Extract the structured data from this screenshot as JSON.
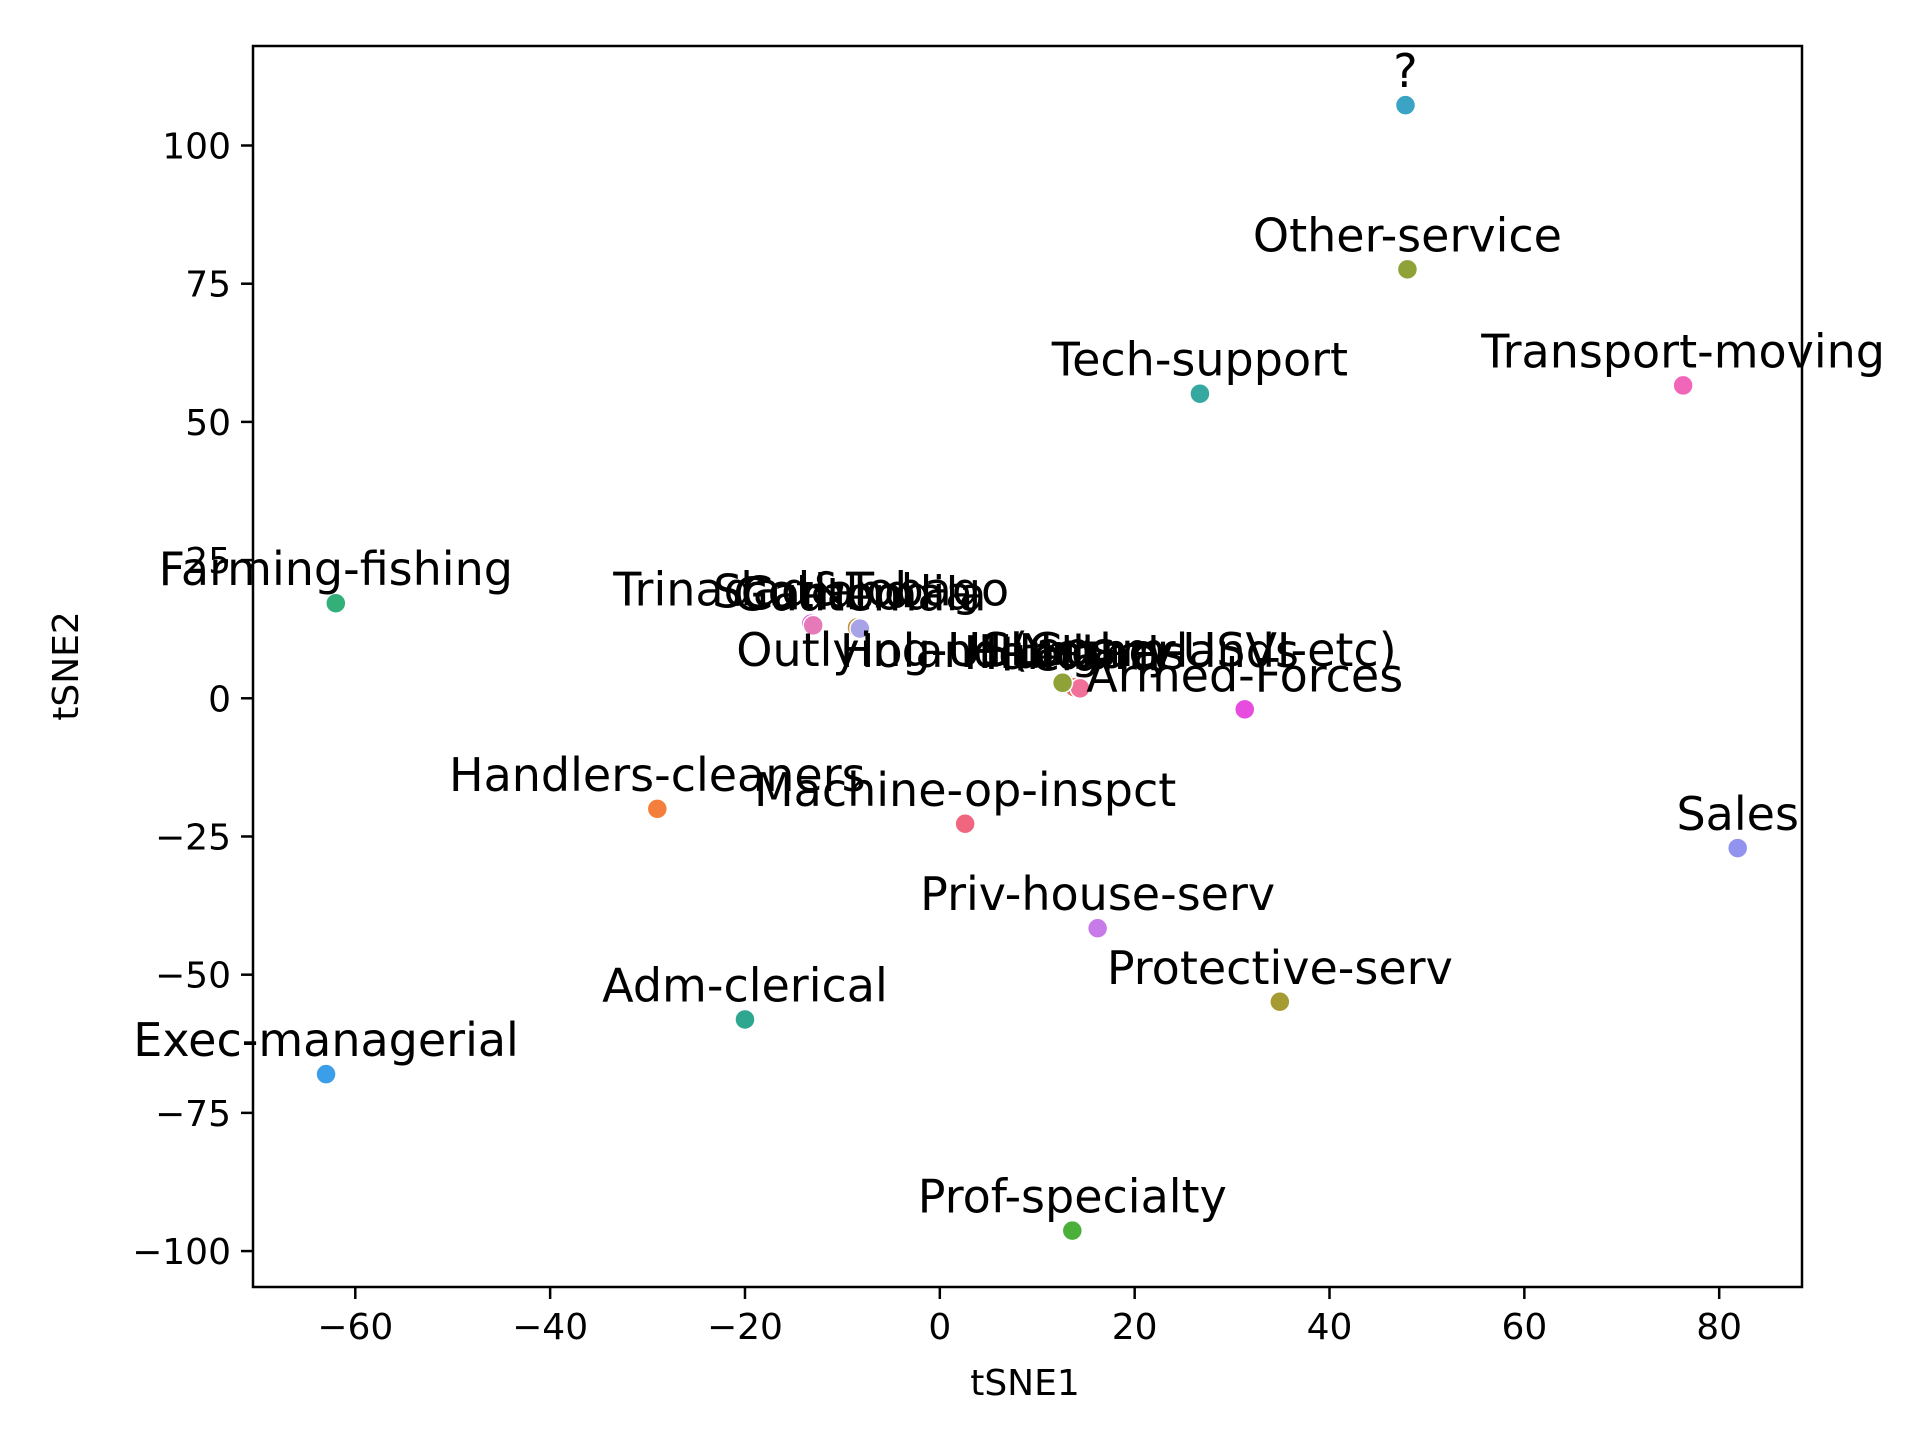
{
  "chart_data": {
    "type": "scatter",
    "title": "",
    "xlabel": "tSNE1",
    "ylabel": "tSNE2",
    "xlim": [
      -70.5,
      88.5
    ],
    "ylim": [
      -106.5,
      118
    ],
    "xticks": [
      -60,
      -40,
      -20,
      0,
      20,
      40,
      60,
      80
    ],
    "yticks": [
      -100,
      -75,
      -50,
      -25,
      0,
      25,
      50,
      75,
      100
    ],
    "grid": false,
    "legend": "none",
    "points": [
      {
        "label": "?",
        "x": 47.8,
        "y": 107.3,
        "color": "#3ba3c3"
      },
      {
        "label": "Other-service",
        "x": 48.0,
        "y": 77.6,
        "color": "#8fa237"
      },
      {
        "label": "Tech-support",
        "x": 26.7,
        "y": 55.1,
        "color": "#35a9a0"
      },
      {
        "label": "Transport-moving",
        "x": 76.3,
        "y": 56.6,
        "color": "#f266b9"
      },
      {
        "label": "Farming-fishing",
        "x": -62.0,
        "y": 17.2,
        "color": "#33b07a"
      },
      {
        "label": "Trinadad&Tobago",
        "x": -13.2,
        "y": 13.5,
        "color": "#d65ae8"
      },
      {
        "label": "Cambodia",
        "x": -8.5,
        "y": 12.8,
        "color": "#c79030"
      },
      {
        "label": "Scotland",
        "x": -13.0,
        "y": 13.2,
        "color": "#e67ab8"
      },
      {
        "label": "Guatemala",
        "x": -8.2,
        "y": 12.6,
        "color": "#a8a3e6"
      },
      {
        "label": "Outlying-US(Guam-USVI-etc)",
        "x": 13.0,
        "y": 2.6,
        "color": "#9a8fe3"
      },
      {
        "label": "Holand-Netherlands",
        "x": 13.3,
        "y": 2.4,
        "color": "#f0709a"
      },
      {
        "label": "Hungary",
        "x": 14.0,
        "y": 2.2,
        "color": "#3ba3c3"
      },
      {
        "label": "Honduras",
        "x": 13.8,
        "y": 2.0,
        "color": "#e87560"
      },
      {
        "label": "Ireland",
        "x": 14.4,
        "y": 1.8,
        "color": "#f0709a"
      },
      {
        "label": "Laos",
        "x": 12.6,
        "y": 2.8,
        "color": "#8fa237"
      },
      {
        "label": "Armed-Forces",
        "x": 31.3,
        "y": -2.0,
        "color": "#e84be0"
      },
      {
        "label": "Handlers-cleaners",
        "x": -29.0,
        "y": -20.0,
        "color": "#f47f3d"
      },
      {
        "label": "Machine-op-inspct",
        "x": 2.6,
        "y": -22.7,
        "color": "#f0667e"
      },
      {
        "label": "Sales",
        "x": 81.9,
        "y": -27.1,
        "color": "#9292ef"
      },
      {
        "label": "Priv-house-serv",
        "x": 16.2,
        "y": -41.6,
        "color": "#c77be8"
      },
      {
        "label": "Protective-serv",
        "x": 34.9,
        "y": -54.9,
        "color": "#a69a32"
      },
      {
        "label": "Adm-clerical",
        "x": -20.0,
        "y": -58.1,
        "color": "#2fa690"
      },
      {
        "label": "Exec-managerial",
        "x": -63.0,
        "y": -68.0,
        "color": "#3a9ee8"
      },
      {
        "label": "Prof-specialty",
        "x": 13.6,
        "y": -96.3,
        "color": "#4bb03a"
      }
    ]
  }
}
